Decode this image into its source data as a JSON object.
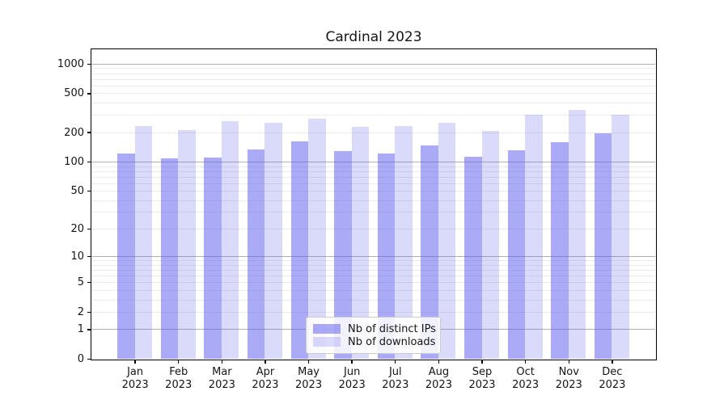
{
  "chart_data": {
    "type": "bar",
    "title": "Cardinal 2023",
    "categories": [
      "Jan 2023",
      "Feb 2023",
      "Mar 2023",
      "Apr 2023",
      "May 2023",
      "Jun 2023",
      "Jul 2023",
      "Aug 2023",
      "Sep 2023",
      "Oct 2023",
      "Nov 2023",
      "Dec 2023"
    ],
    "series": [
      {
        "name": "Nb of distinct IPs",
        "color": "#5555EE",
        "alpha": 0.5,
        "values": [
          120,
          109,
          111,
          134,
          162,
          127,
          120,
          147,
          112,
          131,
          159,
          195
        ]
      },
      {
        "name": "Nb of downloads",
        "color": "#5555EE",
        "alpha": 0.22,
        "values": [
          232,
          211,
          261,
          251,
          272,
          227,
          231,
          250,
          208,
          301,
          339,
          301
        ]
      }
    ],
    "yscale": "log1p",
    "ylim": [
      0,
      1400
    ],
    "yticks": [
      0,
      1,
      2,
      5,
      10,
      20,
      50,
      100,
      200,
      500,
      1000
    ],
    "y_major_gridlines": [
      1,
      10,
      100,
      1000
    ],
    "y_minor_gridlines": [
      2,
      3,
      4,
      5,
      6,
      7,
      8,
      9,
      20,
      30,
      40,
      50,
      60,
      70,
      80,
      90,
      200,
      300,
      400,
      500,
      600,
      700,
      800,
      900
    ],
    "grid": true,
    "legend_position": "lower center inside",
    "colors": {
      "major_grid": "#b0b0b0",
      "minor_grid": "#ebebeb",
      "axis": "#000000",
      "text": "#151515"
    }
  }
}
